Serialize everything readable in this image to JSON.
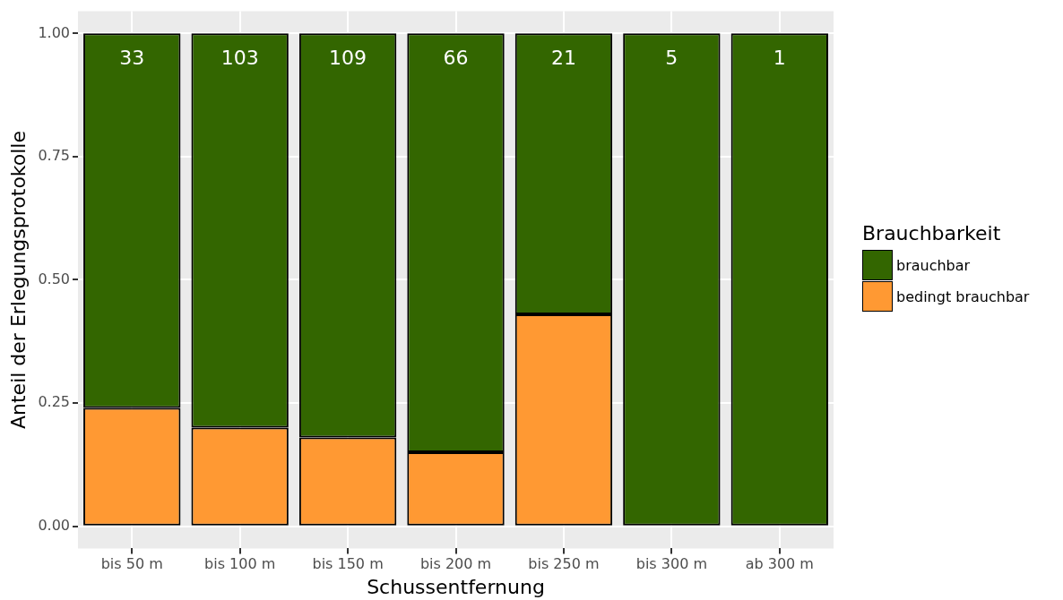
{
  "chart_data": {
    "type": "bar",
    "stacked": true,
    "xlabel": "Schussentfernung",
    "ylabel": "Anteil der Erlegungsprotokolle",
    "legend_title": "Brauchbarkeit",
    "legend": "right",
    "grid": true,
    "categories": [
      "bis 50 m",
      "bis 100 m",
      "bis 150 m",
      "bis 200 m",
      "bis 250 m",
      "bis 300 m",
      "ab 300 m"
    ],
    "series": [
      {
        "name": "bedingt brauchbar",
        "color": "#ff9933",
        "values": [
          0.24,
          0.2,
          0.18,
          0.15,
          0.43,
          0,
          0
        ]
      },
      {
        "name": "brauchbar",
        "color": "#336600",
        "values": [
          0.76,
          0.8,
          0.82,
          0.85,
          0.57,
          1,
          1
        ]
      }
    ],
    "ylim": [
      -0.045,
      1.045
    ],
    "yticks": [
      {
        "value": 0,
        "label": "0.00"
      },
      {
        "value": 0.25,
        "label": "0.25"
      },
      {
        "value": 0.5,
        "label": "0.50"
      },
      {
        "value": 0.75,
        "label": "0.75"
      },
      {
        "value": 1,
        "label": "1.00"
      }
    ],
    "annotations": [
      "33",
      "103",
      "109",
      "66",
      "21",
      "5",
      "1"
    ]
  }
}
